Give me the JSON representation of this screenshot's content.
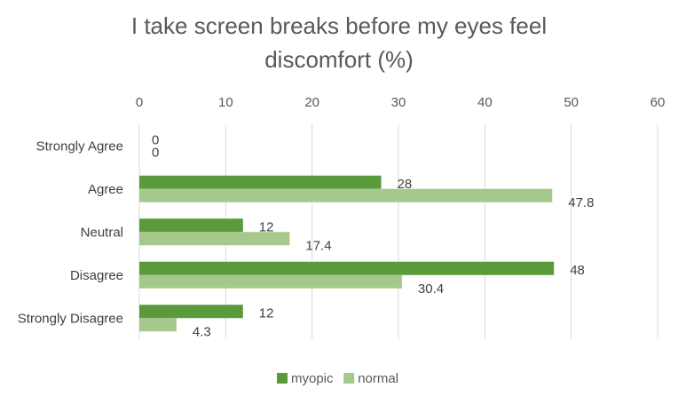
{
  "chart_data": {
    "type": "bar",
    "orientation": "horizontal",
    "title_lines": [
      "I take screen breaks before my eyes feel",
      "discomfort (%)"
    ],
    "categories": [
      "Strongly Agree",
      "Agree",
      "Neutral",
      "Disagree",
      "Strongly Disagree"
    ],
    "series": [
      {
        "name": "myopic",
        "values": [
          0,
          28,
          12,
          48,
          12
        ],
        "color": "#5a9a3b"
      },
      {
        "name": "normal",
        "values": [
          0,
          47.8,
          17.4,
          30.4,
          4.3
        ],
        "color": "#a5c98c"
      }
    ],
    "xlim": [
      0,
      60
    ],
    "x_ticks": [
      0,
      10,
      20,
      30,
      40,
      50,
      60
    ],
    "axis_position": "top",
    "grid": true,
    "legend_position": "bottom"
  }
}
